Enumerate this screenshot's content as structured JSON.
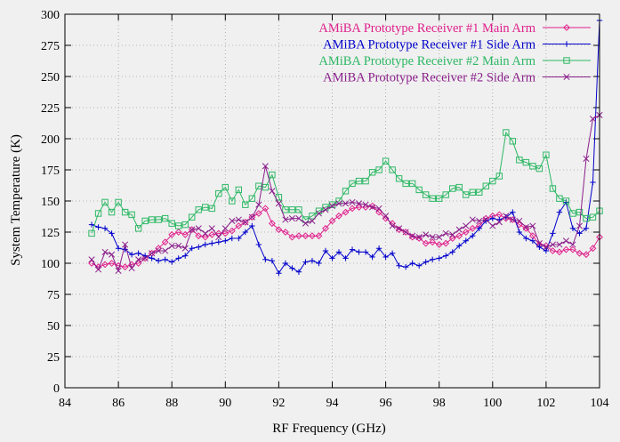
{
  "chart_data": {
    "type": "line",
    "xlabel": "RF Frequency (GHz)",
    "ylabel": "System Temperature (K)",
    "xlim": [
      84,
      104
    ],
    "ylim": [
      0,
      300
    ],
    "xticks": [
      84,
      86,
      88,
      90,
      92,
      94,
      96,
      98,
      100,
      102,
      104
    ],
    "yticks": [
      0,
      25,
      50,
      75,
      100,
      125,
      150,
      175,
      200,
      225,
      250,
      275,
      300
    ],
    "grid": true,
    "legend_position": "top-right",
    "series": [
      {
        "name": "AMiBA Prototype Receiver #1 Main Arm",
        "color": "#e0208c",
        "marker": "diamond",
        "points": [
          [
            85.0,
            100
          ],
          [
            85.25,
            97
          ],
          [
            85.5,
            99
          ],
          [
            85.75,
            100
          ],
          [
            86.0,
            98
          ],
          [
            86.25,
            97
          ],
          [
            86.5,
            99
          ],
          [
            86.75,
            100
          ],
          [
            87.0,
            104
          ],
          [
            87.25,
            108
          ],
          [
            87.5,
            112
          ],
          [
            87.75,
            117
          ],
          [
            88.0,
            123
          ],
          [
            88.25,
            125
          ],
          [
            88.5,
            123
          ],
          [
            88.75,
            127
          ],
          [
            89.0,
            122
          ],
          [
            89.25,
            121
          ],
          [
            89.5,
            123
          ],
          [
            89.75,
            124
          ],
          [
            90.0,
            124
          ],
          [
            90.25,
            126
          ],
          [
            90.5,
            130
          ],
          [
            90.75,
            133
          ],
          [
            91.0,
            137
          ],
          [
            91.25,
            140
          ],
          [
            91.5,
            144
          ],
          [
            91.75,
            132
          ],
          [
            92.0,
            127
          ],
          [
            92.25,
            125
          ],
          [
            92.5,
            121
          ],
          [
            92.75,
            122
          ],
          [
            93.0,
            122
          ],
          [
            93.25,
            122
          ],
          [
            93.5,
            122
          ],
          [
            93.75,
            128
          ],
          [
            94.0,
            134
          ],
          [
            94.25,
            138
          ],
          [
            94.5,
            141
          ],
          [
            94.75,
            144
          ],
          [
            95.0,
            145
          ],
          [
            95.25,
            145
          ],
          [
            95.5,
            146
          ],
          [
            95.75,
            141
          ],
          [
            96.0,
            136
          ],
          [
            96.25,
            132
          ],
          [
            96.5,
            127
          ],
          [
            96.75,
            125
          ],
          [
            97.0,
            121
          ],
          [
            97.25,
            120
          ],
          [
            97.5,
            116
          ],
          [
            97.75,
            117
          ],
          [
            98.0,
            115
          ],
          [
            98.25,
            116
          ],
          [
            98.5,
            120
          ],
          [
            98.75,
            122
          ],
          [
            99.0,
            125
          ],
          [
            99.25,
            128
          ],
          [
            99.5,
            130
          ],
          [
            99.75,
            136
          ],
          [
            100.0,
            138
          ],
          [
            100.25,
            139
          ],
          [
            100.5,
            136
          ],
          [
            100.75,
            135
          ],
          [
            101.0,
            131
          ],
          [
            101.25,
            128
          ],
          [
            101.5,
            122
          ],
          [
            101.75,
            115
          ],
          [
            102.0,
            114
          ],
          [
            102.25,
            110
          ],
          [
            102.5,
            109
          ],
          [
            102.75,
            111
          ],
          [
            103.0,
            111
          ],
          [
            103.25,
            108
          ],
          [
            103.5,
            107
          ],
          [
            103.75,
            112
          ],
          [
            104.0,
            121
          ]
        ]
      },
      {
        "name": "AMiBA Prototype Receiver #1 Side Arm",
        "color": "#0000cc",
        "marker": "plus",
        "points": [
          [
            85.0,
            131
          ],
          [
            85.25,
            129
          ],
          [
            85.5,
            128
          ],
          [
            85.75,
            124
          ],
          [
            86.0,
            112
          ],
          [
            86.25,
            111
          ],
          [
            86.5,
            107
          ],
          [
            86.75,
            108
          ],
          [
            87.0,
            106
          ],
          [
            87.25,
            104
          ],
          [
            87.5,
            102
          ],
          [
            87.75,
            103
          ],
          [
            88.0,
            101
          ],
          [
            88.25,
            104
          ],
          [
            88.5,
            106
          ],
          [
            88.75,
            112
          ],
          [
            89.0,
            113
          ],
          [
            89.25,
            115
          ],
          [
            89.5,
            116
          ],
          [
            89.75,
            117
          ],
          [
            90.0,
            118
          ],
          [
            90.25,
            120
          ],
          [
            90.5,
            120
          ],
          [
            90.75,
            125
          ],
          [
            91.0,
            130
          ],
          [
            91.25,
            115
          ],
          [
            91.5,
            103
          ],
          [
            91.75,
            102
          ],
          [
            92.0,
            92
          ],
          [
            92.25,
            100
          ],
          [
            92.5,
            96
          ],
          [
            92.75,
            93
          ],
          [
            93.0,
            101
          ],
          [
            93.25,
            102
          ],
          [
            93.5,
            100
          ],
          [
            93.75,
            110
          ],
          [
            94.0,
            104
          ],
          [
            94.25,
            109
          ],
          [
            94.5,
            104
          ],
          [
            94.75,
            111
          ],
          [
            95.0,
            109
          ],
          [
            95.25,
            109
          ],
          [
            95.5,
            105
          ],
          [
            95.75,
            112
          ],
          [
            96.0,
            105
          ],
          [
            96.25,
            108
          ],
          [
            96.5,
            98
          ],
          [
            96.75,
            97
          ],
          [
            97.0,
            100
          ],
          [
            97.25,
            98
          ],
          [
            97.5,
            101
          ],
          [
            97.75,
            103
          ],
          [
            98.0,
            104
          ],
          [
            98.25,
            106
          ],
          [
            98.5,
            109
          ],
          [
            98.75,
            114
          ],
          [
            99.0,
            118
          ],
          [
            99.25,
            122
          ],
          [
            99.5,
            128
          ],
          [
            99.75,
            134
          ],
          [
            100.0,
            136
          ],
          [
            100.25,
            135
          ],
          [
            100.5,
            137
          ],
          [
            100.75,
            141
          ],
          [
            101.0,
            125
          ],
          [
            101.25,
            120
          ],
          [
            101.5,
            118
          ],
          [
            101.75,
            113
          ],
          [
            102.0,
            110
          ],
          [
            102.25,
            124
          ],
          [
            102.5,
            141
          ],
          [
            102.75,
            149
          ],
          [
            103.0,
            128
          ],
          [
            103.25,
            124
          ],
          [
            103.5,
            128
          ],
          [
            103.75,
            165
          ],
          [
            104.0,
            295
          ]
        ]
      },
      {
        "name": "AMiBA Prototype Receiver #2 Main Arm",
        "color": "#2db864",
        "marker": "square",
        "points": [
          [
            85.0,
            124
          ],
          [
            85.25,
            140
          ],
          [
            85.5,
            149
          ],
          [
            85.75,
            141
          ],
          [
            86.0,
            149
          ],
          [
            86.25,
            141
          ],
          [
            86.5,
            139
          ],
          [
            86.75,
            128
          ],
          [
            87.0,
            134
          ],
          [
            87.25,
            135
          ],
          [
            87.5,
            135
          ],
          [
            87.75,
            136
          ],
          [
            88.0,
            132
          ],
          [
            88.25,
            130
          ],
          [
            88.5,
            131
          ],
          [
            88.75,
            137
          ],
          [
            89.0,
            143
          ],
          [
            89.25,
            145
          ],
          [
            89.5,
            144
          ],
          [
            89.75,
            156
          ],
          [
            90.0,
            161
          ],
          [
            90.25,
            150
          ],
          [
            90.5,
            159
          ],
          [
            90.75,
            147
          ],
          [
            91.0,
            152
          ],
          [
            91.25,
            162
          ],
          [
            91.5,
            161
          ],
          [
            91.75,
            171
          ],
          [
            92.0,
            153
          ],
          [
            92.25,
            143
          ],
          [
            92.5,
            143
          ],
          [
            92.75,
            143
          ],
          [
            93.0,
            135
          ],
          [
            93.25,
            138
          ],
          [
            93.5,
            142
          ],
          [
            93.75,
            145
          ],
          [
            94.0,
            147
          ],
          [
            94.25,
            150
          ],
          [
            94.5,
            158
          ],
          [
            94.75,
            164
          ],
          [
            95.0,
            166
          ],
          [
            95.25,
            166
          ],
          [
            95.5,
            173
          ],
          [
            95.75,
            175
          ],
          [
            96.0,
            182
          ],
          [
            96.25,
            175
          ],
          [
            96.5,
            168
          ],
          [
            96.75,
            164
          ],
          [
            97.0,
            164
          ],
          [
            97.25,
            159
          ],
          [
            97.5,
            155
          ],
          [
            97.75,
            152
          ],
          [
            98.0,
            152
          ],
          [
            98.25,
            155
          ],
          [
            98.5,
            160
          ],
          [
            98.75,
            161
          ],
          [
            99.0,
            155
          ],
          [
            99.25,
            157
          ],
          [
            99.5,
            157
          ],
          [
            99.75,
            162
          ],
          [
            100.0,
            166
          ],
          [
            100.25,
            170
          ],
          [
            100.5,
            205
          ],
          [
            100.75,
            198
          ],
          [
            101.0,
            183
          ],
          [
            101.25,
            181
          ],
          [
            101.5,
            178
          ],
          [
            101.75,
            176
          ],
          [
            102.0,
            187
          ],
          [
            102.25,
            160
          ],
          [
            102.5,
            152
          ],
          [
            102.75,
            150
          ],
          [
            103.0,
            140
          ],
          [
            103.25,
            141
          ],
          [
            103.5,
            136
          ],
          [
            103.75,
            137
          ],
          [
            104.0,
            142
          ]
        ]
      },
      {
        "name": "AMiBA Prototype Receiver #2 Side Arm",
        "color": "#8b1f8b",
        "marker": "cross",
        "points": [
          [
            85.0,
            103
          ],
          [
            85.25,
            95
          ],
          [
            85.5,
            109
          ],
          [
            85.75,
            107
          ],
          [
            86.0,
            94
          ],
          [
            86.25,
            115
          ],
          [
            86.5,
            96
          ],
          [
            86.75,
            103
          ],
          [
            87.0,
            104
          ],
          [
            87.25,
            108
          ],
          [
            87.5,
            110
          ],
          [
            87.75,
            110
          ],
          [
            88.0,
            114
          ],
          [
            88.25,
            114
          ],
          [
            88.5,
            112
          ],
          [
            88.75,
            127
          ],
          [
            89.0,
            128
          ],
          [
            89.25,
            124
          ],
          [
            89.5,
            128
          ],
          [
            89.75,
            121
          ],
          [
            90.0,
            128
          ],
          [
            90.25,
            134
          ],
          [
            90.5,
            135
          ],
          [
            90.75,
            133
          ],
          [
            91.0,
            137
          ],
          [
            91.25,
            147
          ],
          [
            91.5,
            178
          ],
          [
            91.75,
            158
          ],
          [
            92.0,
            148
          ],
          [
            92.25,
            135
          ],
          [
            92.5,
            136
          ],
          [
            92.75,
            136
          ],
          [
            93.0,
            132
          ],
          [
            93.25,
            134
          ],
          [
            93.5,
            140
          ],
          [
            93.75,
            143
          ],
          [
            94.0,
            146
          ],
          [
            94.25,
            148
          ],
          [
            94.5,
            148
          ],
          [
            94.75,
            149
          ],
          [
            95.0,
            148
          ],
          [
            95.25,
            147
          ],
          [
            95.5,
            145
          ],
          [
            95.75,
            144
          ],
          [
            96.0,
            138
          ],
          [
            96.25,
            130
          ],
          [
            96.5,
            128
          ],
          [
            96.75,
            125
          ],
          [
            97.0,
            122
          ],
          [
            97.25,
            121
          ],
          [
            97.5,
            123
          ],
          [
            97.75,
            121
          ],
          [
            98.0,
            121
          ],
          [
            98.25,
            124
          ],
          [
            98.5,
            123
          ],
          [
            98.75,
            127
          ],
          [
            99.0,
            130
          ],
          [
            99.25,
            135
          ],
          [
            99.5,
            134
          ],
          [
            99.75,
            135
          ],
          [
            100.0,
            130
          ],
          [
            100.25,
            133
          ],
          [
            100.5,
            138
          ],
          [
            100.75,
            135
          ],
          [
            101.0,
            134
          ],
          [
            101.25,
            129
          ],
          [
            101.5,
            130
          ],
          [
            101.75,
            116
          ],
          [
            102.0,
            113
          ],
          [
            102.25,
            115
          ],
          [
            102.5,
            115
          ],
          [
            102.75,
            118
          ],
          [
            103.0,
            115
          ],
          [
            103.25,
            130
          ],
          [
            103.5,
            184
          ],
          [
            103.75,
            216
          ],
          [
            104.0,
            219
          ]
        ]
      }
    ]
  }
}
